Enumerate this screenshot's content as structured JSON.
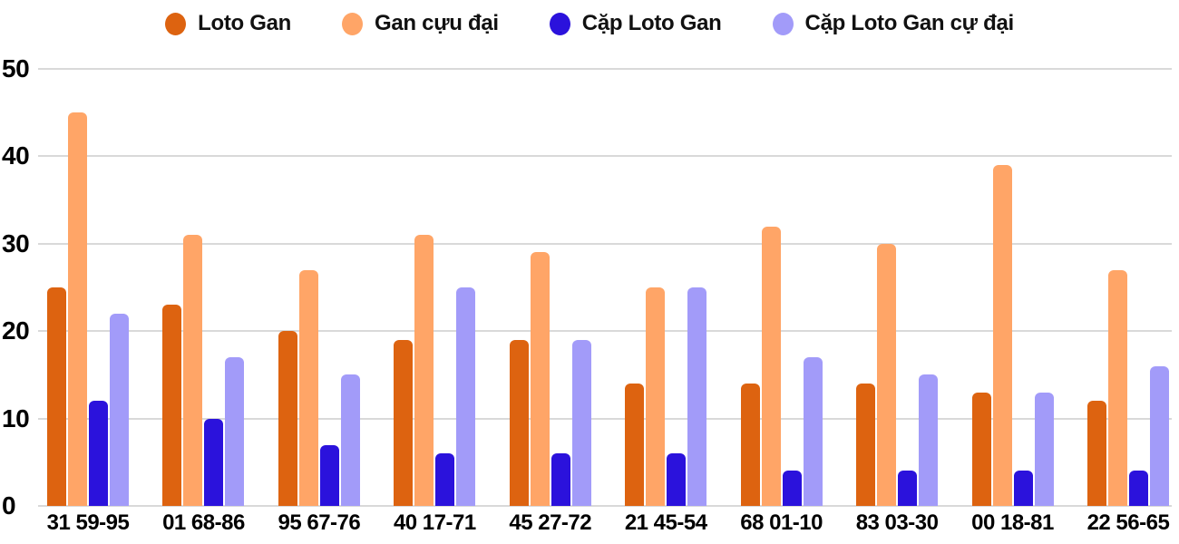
{
  "chart_data": {
    "type": "bar",
    "title": "",
    "xlabel": "",
    "ylabel": "",
    "categories": [
      "31 59-95",
      "01 68-86",
      "95 67-76",
      "40 17-71",
      "45 27-72",
      "21 45-54",
      "68 01-10",
      "83 03-30",
      "00 18-81",
      "22 56-65"
    ],
    "series": [
      {
        "name": "Loto Gan",
        "color": "#DD6310",
        "values": [
          25,
          23,
          20,
          19,
          19,
          14,
          14,
          14,
          13,
          12
        ]
      },
      {
        "name": "Gan cựu đại",
        "color": "#FFA567",
        "values": [
          45,
          31,
          27,
          31,
          29,
          25,
          32,
          30,
          39,
          27
        ]
      },
      {
        "name": "Cặp Loto Gan",
        "color": "#2B12DC",
        "values": [
          12,
          10,
          7,
          6,
          6,
          6,
          4,
          4,
          4,
          4
        ]
      },
      {
        "name": "Cặp Loto Gan cự đại",
        "color": "#A29BF9",
        "values": [
          22,
          17,
          15,
          25,
          19,
          25,
          17,
          15,
          13,
          16
        ]
      }
    ],
    "ylim": [
      0,
      50
    ],
    "yticks": [
      0,
      10,
      20,
      30,
      40,
      50
    ],
    "grid": true,
    "legend_position": "top"
  },
  "colors": {
    "background": "#FFFFFF",
    "gridline": "#D9D9D9",
    "axis_text": "#000000",
    "legend_text": "#111111"
  }
}
